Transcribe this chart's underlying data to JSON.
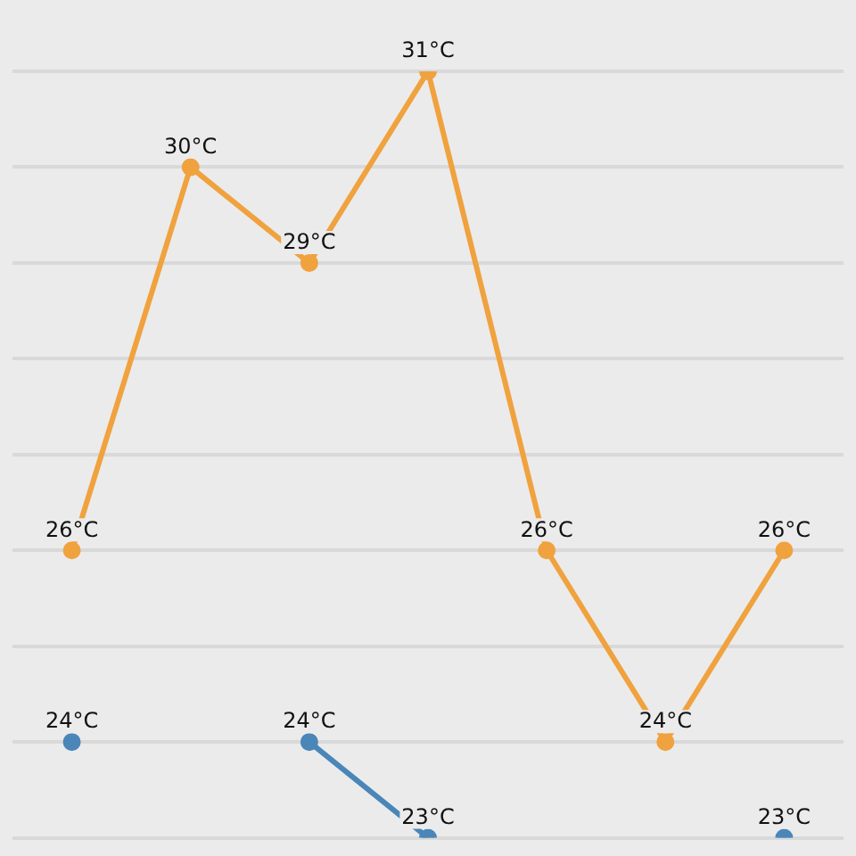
{
  "chart_data": {
    "type": "line",
    "categories": [
      null,
      null,
      null,
      null,
      null,
      null,
      null
    ],
    "series": [
      {
        "color": "#f0a23e",
        "values": [
          26,
          30,
          29,
          31,
          26,
          24,
          26
        ],
        "value_labels": [
          "26°C",
          "30°C",
          "29°C",
          "31°C",
          "26°C",
          "24°C",
          "26°C"
        ]
      },
      {
        "color": "#4a86b8",
        "values": [
          24,
          null,
          24,
          23,
          null,
          null,
          23
        ],
        "value_labels": [
          "24°C",
          null,
          "24°C",
          "23°C",
          null,
          null,
          "23°C"
        ]
      }
    ],
    "yticks": [
      {
        "value": 23,
        "label": null
      },
      {
        "value": 24,
        "label": null
      },
      {
        "value": 25,
        "label": null
      },
      {
        "value": 26,
        "label": null
      },
      {
        "value": 27,
        "label": null
      },
      {
        "value": 28,
        "label": null
      },
      {
        "value": 29,
        "label": null
      },
      {
        "value": 30,
        "label": null
      },
      {
        "value": 31,
        "label": null
      }
    ],
    "grid": "y",
    "legend": false,
    "marker": "circle",
    "line_style": "solid"
  }
}
